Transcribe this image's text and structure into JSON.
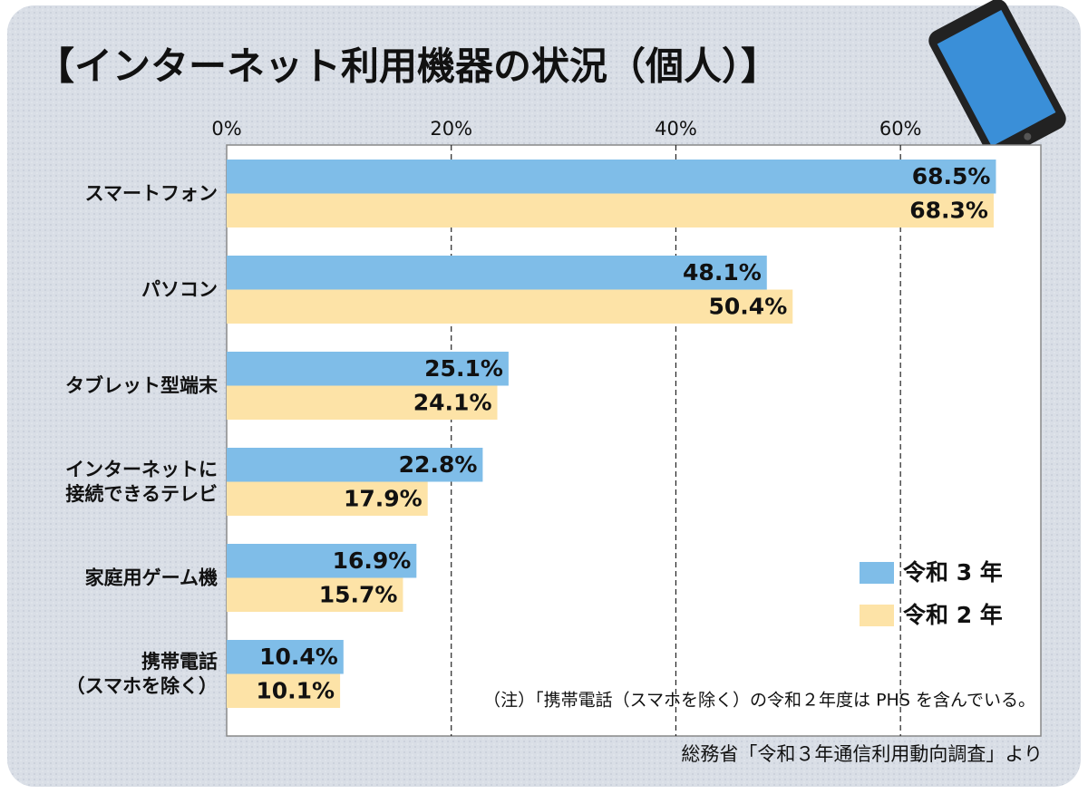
{
  "chart_data": {
    "type": "hbar",
    "title": "【インターネット利用機器の状況（個人）】",
    "categories": [
      "スマートフォン",
      "パソコン",
      "タブレット型端末",
      "インターネットに\n接続できるテレビ",
      "家庭用ゲーム機",
      "携帯電話\n（スマホを除く）"
    ],
    "series": [
      {
        "name": "令和 3 年",
        "color": "#7fbde8",
        "values": [
          68.5,
          48.1,
          25.1,
          22.8,
          16.9,
          10.4
        ],
        "value_labels": [
          "68.5%",
          "48.1%",
          "25.1%",
          "22.8%",
          "16.9%",
          "10.4%"
        ]
      },
      {
        "name": "令和 2 年",
        "color": "#fde3a7",
        "values": [
          68.3,
          50.4,
          24.1,
          17.9,
          15.7,
          10.1
        ],
        "value_labels": [
          "68.3%",
          "50.4%",
          "24.1%",
          "17.9%",
          "15.7%",
          "10.1%"
        ]
      }
    ],
    "xlim": [
      0,
      72.5
    ],
    "xticks": [
      {
        "value": 0,
        "label": "0%"
      },
      {
        "value": 20,
        "label": "20%"
      },
      {
        "value": 40,
        "label": "40%"
      },
      {
        "value": 60,
        "label": "60%"
      }
    ],
    "grid": true,
    "legend": "lower right",
    "note": "（注）「携帯電話（スマホを除く）の令和２年度は PHS を含んでいる。",
    "source": "総務省「令和３年通信利用動向調査」より"
  }
}
